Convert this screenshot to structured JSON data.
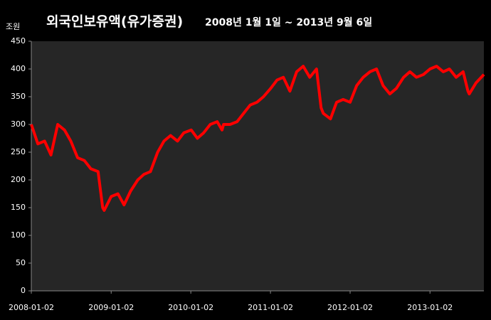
{
  "chart_data": {
    "type": "line",
    "title": "외국인보유액(유가증권)",
    "subtitle": "2008년 1월 1일 ~ 2013년 9월 6일",
    "y_label": "조원",
    "x": [
      "2008-01-02",
      "2008-02-01",
      "2008-03-03",
      "2008-04-01",
      "2008-05-02",
      "2008-06-02",
      "2008-07-01",
      "2008-08-01",
      "2008-09-01",
      "2008-10-01",
      "2008-11-03",
      "2008-11-24",
      "2008-12-01",
      "2009-01-02",
      "2009-02-02",
      "2009-03-02",
      "2009-04-01",
      "2009-05-04",
      "2009-06-01",
      "2009-07-01",
      "2009-08-03",
      "2009-09-01",
      "2009-10-01",
      "2009-11-02",
      "2009-12-01",
      "2010-01-04",
      "2010-02-01",
      "2010-03-02",
      "2010-04-01",
      "2010-05-03",
      "2010-05-25",
      "2010-06-01",
      "2010-07-01",
      "2010-08-02",
      "2010-09-01",
      "2010-10-01",
      "2010-11-01",
      "2010-12-01",
      "2011-01-03",
      "2011-02-01",
      "2011-03-02",
      "2011-04-01",
      "2011-05-02",
      "2011-06-01",
      "2011-07-01",
      "2011-08-01",
      "2011-08-22",
      "2011-09-01",
      "2011-10-04",
      "2011-11-01",
      "2011-12-01",
      "2012-01-02",
      "2012-02-01",
      "2012-03-02",
      "2012-04-02",
      "2012-05-02",
      "2012-06-01",
      "2012-07-02",
      "2012-08-01",
      "2012-09-03",
      "2012-10-02",
      "2012-11-01",
      "2012-12-03",
      "2013-01-02",
      "2013-02-01",
      "2013-03-04",
      "2013-04-01",
      "2013-05-02",
      "2013-06-03",
      "2013-06-25",
      "2013-07-01",
      "2013-08-01",
      "2013-09-06"
    ],
    "series": [
      {
        "name": "외국인보유액",
        "color": "#ff0000",
        "values": [
          300,
          265,
          270,
          245,
          300,
          290,
          270,
          240,
          235,
          220,
          215,
          150,
          145,
          170,
          175,
          155,
          180,
          200,
          210,
          215,
          250,
          270,
          280,
          270,
          285,
          290,
          275,
          285,
          300,
          305,
          290,
          300,
          300,
          305,
          320,
          335,
          340,
          350,
          365,
          380,
          385,
          360,
          395,
          405,
          385,
          400,
          330,
          320,
          310,
          340,
          345,
          340,
          370,
          385,
          395,
          400,
          370,
          355,
          365,
          385,
          395,
          385,
          390,
          400,
          405,
          395,
          400,
          385,
          395,
          360,
          355,
          375,
          390
        ]
      }
    ],
    "xlim": [
      "2008-01-02",
      "2013-09-06"
    ],
    "xticks": [
      "2008-01-02",
      "2009-01-02",
      "2010-01-02",
      "2011-01-02",
      "2012-01-02",
      "2013-01-02"
    ],
    "ylim": [
      0,
      450
    ],
    "yticks": [
      0,
      50,
      100,
      150,
      200,
      250,
      300,
      350,
      400,
      450
    ],
    "grid": false
  }
}
